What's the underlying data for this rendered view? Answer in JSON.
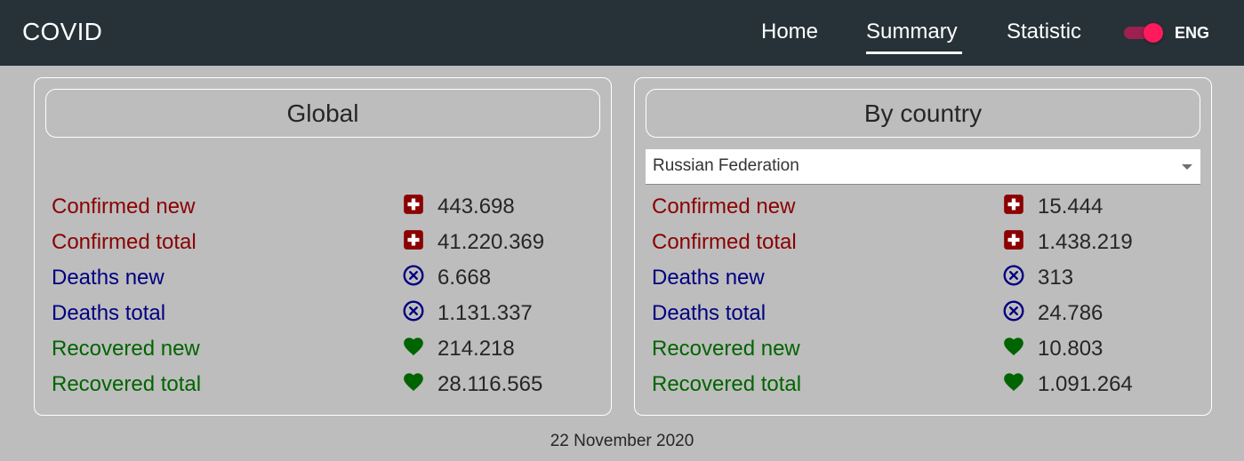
{
  "appbar": {
    "brand": "COVID",
    "nav": {
      "home": "Home",
      "summary": "Summary",
      "statistic": "Statistic"
    },
    "lang": "ENG"
  },
  "colors": {
    "confirmed": "#8b0000",
    "deaths": "#000080",
    "recovered": "#006400",
    "appbar": "#263238",
    "toggle": "#ff1a5c"
  },
  "global": {
    "title": "Global",
    "rows": [
      {
        "label": "Confirmed new",
        "value": "443.698",
        "icon": "plus-box-icon",
        "kind": "confirmed"
      },
      {
        "label": "Confirmed total",
        "value": "41.220.369",
        "icon": "plus-box-icon",
        "kind": "confirmed"
      },
      {
        "label": "Deaths new",
        "value": "6.668",
        "icon": "x-circle-icon",
        "kind": "deaths"
      },
      {
        "label": "Deaths total",
        "value": "1.131.337",
        "icon": "x-circle-icon",
        "kind": "deaths"
      },
      {
        "label": "Recovered new",
        "value": "214.218",
        "icon": "heart-icon",
        "kind": "recovered"
      },
      {
        "label": "Recovered total",
        "value": "28.116.565",
        "icon": "heart-icon",
        "kind": "recovered"
      }
    ]
  },
  "country": {
    "title": "By country",
    "selected": "Russian Federation",
    "rows": [
      {
        "label": "Confirmed new",
        "value": "15.444",
        "icon": "plus-box-icon",
        "kind": "confirmed"
      },
      {
        "label": "Confirmed total",
        "value": "1.438.219",
        "icon": "plus-box-icon",
        "kind": "confirmed"
      },
      {
        "label": "Deaths new",
        "value": "313",
        "icon": "x-circle-icon",
        "kind": "deaths"
      },
      {
        "label": "Deaths total",
        "value": "24.786",
        "icon": "x-circle-icon",
        "kind": "deaths"
      },
      {
        "label": "Recovered new",
        "value": "10.803",
        "icon": "heart-icon",
        "kind": "recovered"
      },
      {
        "label": "Recovered total",
        "value": "1.091.264",
        "icon": "heart-icon",
        "kind": "recovered"
      }
    ]
  },
  "footer": {
    "date": "22 November 2020"
  }
}
